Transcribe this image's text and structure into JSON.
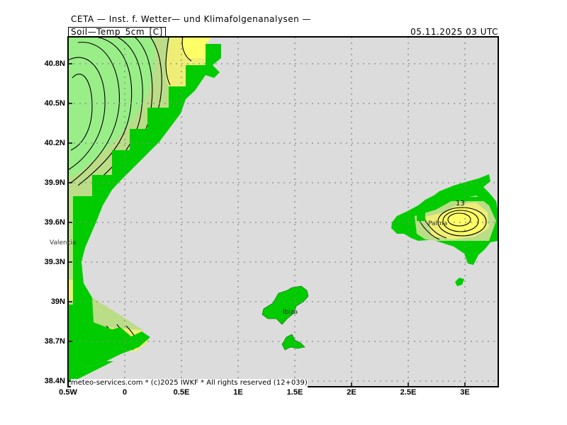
{
  "header": {
    "title": "CETA — Inst. f. Wetter— und Klimafolgenanalysen —",
    "parameter": "Soil—Temp_5cm_[C]",
    "datetime": "05.11.2025 03 UTC"
  },
  "axes": {
    "lat_ticks": [
      "40.8N",
      "40.5N",
      "40.2N",
      "39.9N",
      "39.6N",
      "39.3N",
      "39N",
      "38.7N",
      "38.4N"
    ],
    "lon_ticks": [
      "0.5W",
      "0",
      "0.5E",
      "1E",
      "1.5E",
      "2E",
      "2.5E",
      "3E"
    ]
  },
  "places": {
    "valencia": "Valencia",
    "palma": "Palma",
    "ibiza": "Ibiza"
  },
  "contour_labels": {
    "majorca": "13"
  },
  "credit": "meteo-services.com * (c)2025 IWKF * All rights reserved (12+039)",
  "colors": {
    "sea": "#dcdcdc",
    "land_mask": "#00cc00",
    "light_green": "#99ee88",
    "mid_green": "#bbdd88",
    "yellow": "#eeee77",
    "bright_yellow": "#ffff66",
    "grid": "#888888"
  }
}
